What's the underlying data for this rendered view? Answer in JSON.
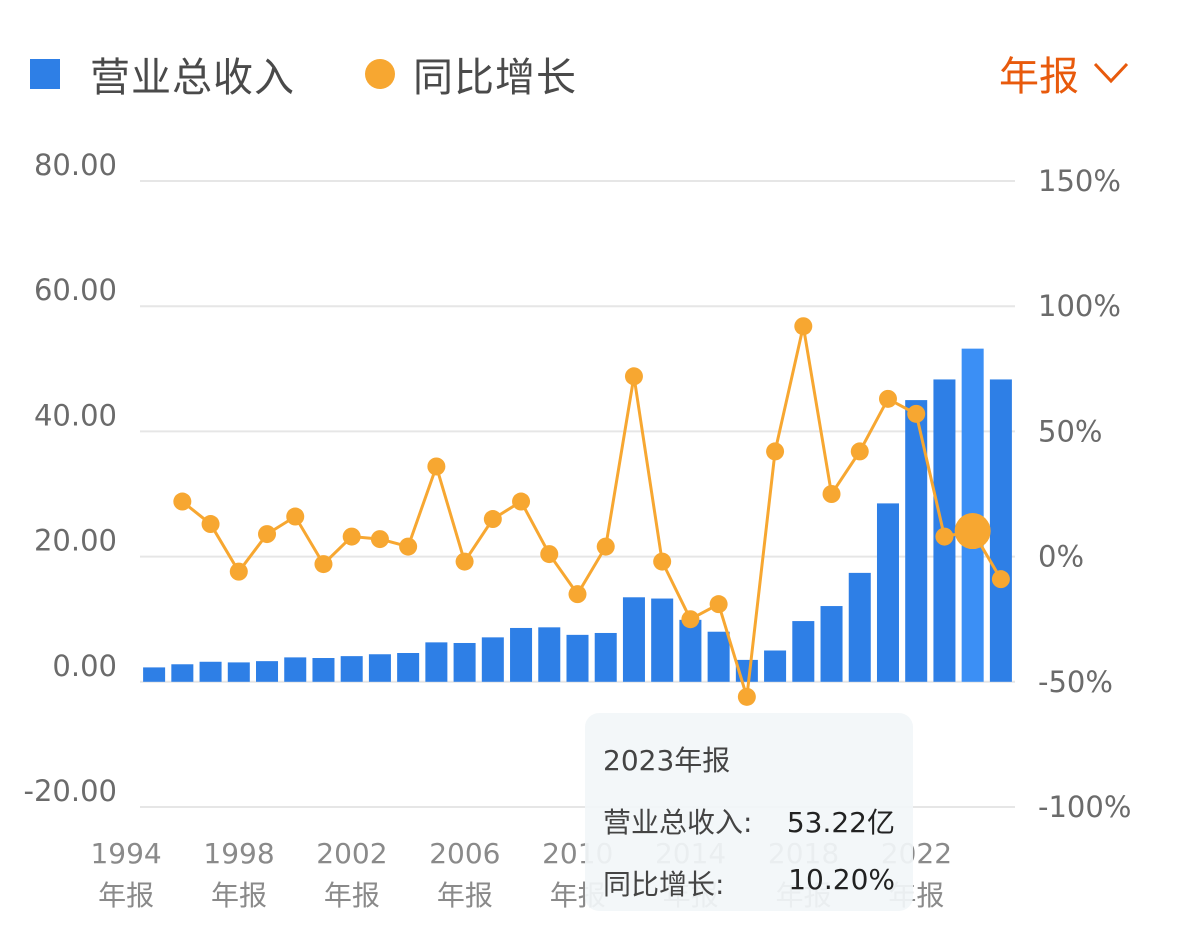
{
  "legend": {
    "revenue_label": "营业总收入",
    "growth_label": "同比增长"
  },
  "period_selector": {
    "label": "年报",
    "icon": "chevron-down-icon"
  },
  "colors": {
    "bar": "#2e7fe6",
    "bar_highlight": "#3b8ff5",
    "line": "#f7a731",
    "accent": "#e85a0c",
    "grid": "#e6e6e6",
    "axis_text": "#6b6b6b"
  },
  "tooltip": {
    "title": "2023年报",
    "revenue_label": "营业总收入:",
    "revenue_value": "53.22亿",
    "growth_label": "同比增长:",
    "growth_value": "10.20%"
  },
  "chart_data": {
    "type": "bar+line",
    "categories": [
      "1994",
      "1995",
      "1996",
      "1997",
      "1998",
      "1999",
      "2000",
      "2001",
      "2002",
      "2003",
      "2004",
      "2005",
      "2006",
      "2007",
      "2008",
      "2009",
      "2010",
      "2011",
      "2012",
      "2013",
      "2014",
      "2015",
      "2016",
      "2017",
      "2018",
      "2019",
      "2020",
      "2021",
      "2022",
      "2023",
      "2024"
    ],
    "x_tick_labels": [
      {
        "year": "1994",
        "suffix": "年报"
      },
      {
        "year": "1998",
        "suffix": "年报"
      },
      {
        "year": "2002",
        "suffix": "年报"
      },
      {
        "year": "2006",
        "suffix": "年报"
      },
      {
        "year": "2010",
        "suffix": "年报"
      },
      {
        "year": "2014",
        "suffix": "年报"
      },
      {
        "year": "2018",
        "suffix": "年报"
      },
      {
        "year": "2022",
        "suffix": "年报"
      }
    ],
    "series": [
      {
        "name": "营业总收入",
        "axis": "left",
        "type": "bar",
        "values": [
          2.3,
          2.8,
          3.2,
          3.1,
          3.3,
          3.9,
          3.8,
          4.1,
          4.4,
          4.6,
          6.3,
          6.2,
          7.1,
          8.6,
          8.7,
          7.5,
          7.8,
          13.5,
          13.3,
          9.9,
          8.0,
          3.5,
          5.0,
          9.7,
          12.1,
          17.4,
          28.5,
          45.0,
          48.3,
          53.22,
          48.3
        ]
      },
      {
        "name": "同比增长",
        "axis": "right",
        "type": "line",
        "values": [
          null,
          22,
          13,
          -6,
          9,
          16,
          -3,
          8,
          7,
          4,
          36,
          -2,
          15,
          22,
          1,
          -15,
          4,
          72,
          -2,
          -25,
          -19,
          -56,
          42,
          92,
          25,
          42,
          63,
          57,
          8,
          10.2,
          -9
        ]
      }
    ],
    "highlight_index": 29,
    "y_left": {
      "ticks": [
        "80.00",
        "60.00",
        "40.00",
        "20.00",
        "0.00",
        "-20.00"
      ],
      "values": [
        80,
        60,
        40,
        20,
        0,
        -20
      ],
      "ylim": [
        -20,
        80
      ]
    },
    "y_right": {
      "ticks": [
        "150%",
        "100%",
        "50%",
        "0%",
        "-50%",
        "-100%"
      ],
      "values": [
        150,
        100,
        50,
        0,
        -50,
        -100
      ],
      "ylim": [
        -100,
        150
      ]
    },
    "grid": true
  }
}
